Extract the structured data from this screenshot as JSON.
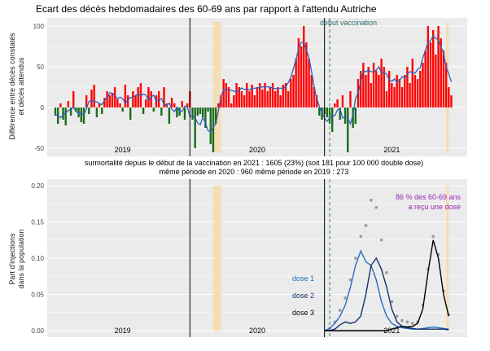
{
  "title": "Ecart des décès hebdomadaires des 60-69 ans par rapport à l'attendu Autriche",
  "top": {
    "ylabel_line1": "Différence entre décès constatés",
    "ylabel_line2": "et décès attendus",
    "yticks": [
      "100",
      "50",
      "0",
      "-50"
    ],
    "annotation_vaccination": "debut vaccination",
    "years": [
      "2019",
      "2020",
      "2021"
    ]
  },
  "middle_text": {
    "line1": "surmortalité depuis le début de la vaccination en 2021 : 1605  (23%)            (soit 181 pour 100 000 double dose)",
    "line2": "même période en 2020 : 960            même période en 2019 : 273"
  },
  "bottom": {
    "ylabel_line1": "Part d'injections",
    "ylabel_line2": "dans la population",
    "yticks": [
      "0.20",
      "0.15",
      "0.10",
      "0.05",
      "0.00"
    ],
    "legend": [
      {
        "label": "dose 1",
        "color": "#1f6fbf"
      },
      {
        "label": "dose 2",
        "color": "#12306b"
      },
      {
        "label": "dose 3",
        "color": "#000000"
      }
    ],
    "note_line1": "86 % des 60-69 ans",
    "note_line2": "a reçu une dose",
    "note_color": "#9b26b6",
    "years": [
      "2019",
      "2020",
      "2021"
    ]
  },
  "colors": {
    "panel_bg": "#ebebeb",
    "grid": "#ffffff",
    "positive": "#ff0000",
    "negative": "#1a6b1a",
    "smooth": "#2e5fbf",
    "highlight": "#f5deb3",
    "vacc_line": "#2b8c6e"
  },
  "chart_data": [
    {
      "type": "bar",
      "title": "Ecart des décès hebdomadaires des 60-69 ans par rapport à l'attendu Autriche",
      "ylabel": "Différence entre décès constatés et décès attendus",
      "ylim": [
        -60,
        110
      ],
      "x_unit": "week index (2019-W1 = 0)",
      "x_range": [
        0,
        156
      ],
      "values": [
        -10,
        -20,
        5,
        -15,
        -22,
        8,
        -10,
        20,
        -5,
        -12,
        -18,
        -20,
        15,
        -8,
        22,
        28,
        -12,
        5,
        -8,
        12,
        20,
        15,
        18,
        25,
        10,
        5,
        -5,
        28,
        15,
        -15,
        20,
        15,
        25,
        30,
        -8,
        10,
        25,
        20,
        -5,
        15,
        20,
        -10,
        25,
        5,
        -20,
        12,
        5,
        -12,
        -10,
        8,
        -15,
        5,
        20,
        -15,
        -50,
        -10,
        -8,
        -12,
        -25,
        -5,
        -45,
        -55,
        -20,
        5,
        15,
        35,
        30,
        25,
        5,
        15,
        30,
        25,
        20,
        15,
        30,
        20,
        28,
        15,
        25,
        30,
        22,
        30,
        20,
        25,
        30,
        20,
        25,
        15,
        28,
        30,
        20,
        35,
        40,
        60,
        85,
        75,
        100,
        80,
        60,
        40,
        25,
        15,
        -10,
        -15,
        -8,
        -12,
        -20,
        -30,
        5,
        10,
        -15,
        15,
        -20,
        -55,
        20,
        -25,
        -20,
        35,
        45,
        55,
        40,
        50,
        30,
        55,
        45,
        40,
        60,
        50,
        20,
        45,
        30,
        25,
        40,
        35,
        25,
        40,
        50,
        30,
        60,
        40,
        35,
        45,
        55,
        70,
        100,
        80,
        95,
        65,
        100,
        85,
        70,
        55,
        25,
        15
      ],
      "smoothed_line": "weekly smoothed deviation (blue)",
      "vertical_lines": {
        "year_boundaries_weeks": [
          52,
          104
        ],
        "vaccination_start_week": 106
      },
      "highlight_weeks": [
        [
          61,
          64
        ],
        [
          151,
          152
        ]
      ],
      "xticks": [
        "2019",
        "2020",
        "2021"
      ]
    },
    {
      "type": "line",
      "ylabel": "Part d'injections dans la population",
      "ylim": [
        0,
        0.2
      ],
      "x_unit": "week index (2019-W1 = 0)",
      "x_range": [
        0,
        156
      ],
      "series": [
        {
          "name": "dose 1",
          "x": [
            104,
            106,
            108,
            110,
            112,
            114,
            116,
            118,
            120,
            122,
            124,
            126,
            128,
            130,
            132,
            134,
            136,
            138,
            140,
            142,
            144,
            146,
            148,
            150,
            152
          ],
          "values": [
            0,
            0.003,
            0.01,
            0.02,
            0.035,
            0.06,
            0.09,
            0.11,
            0.095,
            0.09,
            0.07,
            0.04,
            0.02,
            0.01,
            0.006,
            0.004,
            0.003,
            0.002,
            0.002,
            0.003,
            0.004,
            0.005,
            0.004,
            0.003,
            0.002
          ]
        },
        {
          "name": "dose 2",
          "x": [
            104,
            106,
            108,
            110,
            112,
            114,
            116,
            118,
            120,
            122,
            124,
            126,
            128,
            130,
            132,
            134,
            136,
            138,
            140,
            142,
            144,
            146,
            148,
            150,
            152
          ],
          "values": [
            0,
            0,
            0.002,
            0.008,
            0.012,
            0.01,
            0.012,
            0.02,
            0.05,
            0.09,
            0.1,
            0.085,
            0.06,
            0.03,
            0.012,
            0.006,
            0.004,
            0.003,
            0.002,
            0.002,
            0.002,
            0.002,
            0.002,
            0.002,
            0.001
          ]
        },
        {
          "name": "dose 3",
          "x": [
            104,
            106,
            108,
            110,
            112,
            114,
            116,
            118,
            120,
            122,
            124,
            126,
            128,
            130,
            132,
            134,
            136,
            138,
            140,
            142,
            144,
            146,
            148,
            150,
            152
          ],
          "values": [
            0,
            0,
            0,
            0,
            0,
            0,
            0,
            0,
            0,
            0,
            0,
            0,
            0,
            0.002,
            0.004,
            0.006,
            0.005,
            0.006,
            0.01,
            0.03,
            0.08,
            0.125,
            0.1,
            0.05,
            0.02
          ]
        }
      ],
      "total_points": {
        "x": [
          106,
          108,
          110,
          112,
          114,
          116,
          118,
          120,
          122,
          124,
          126,
          128,
          130,
          132,
          134,
          136,
          138,
          140,
          142,
          144,
          146,
          148,
          150,
          152
        ],
        "values": [
          0.003,
          0.012,
          0.028,
          0.045,
          0.07,
          0.1,
          0.13,
          0.145,
          0.18,
          0.17,
          0.125,
          0.08,
          0.04,
          0.02,
          0.014,
          0.012,
          0.01,
          0.012,
          0.035,
          0.085,
          0.13,
          0.105,
          0.055,
          0.022
        ]
      },
      "xticks": [
        "2019",
        "2020",
        "2021"
      ]
    }
  ]
}
